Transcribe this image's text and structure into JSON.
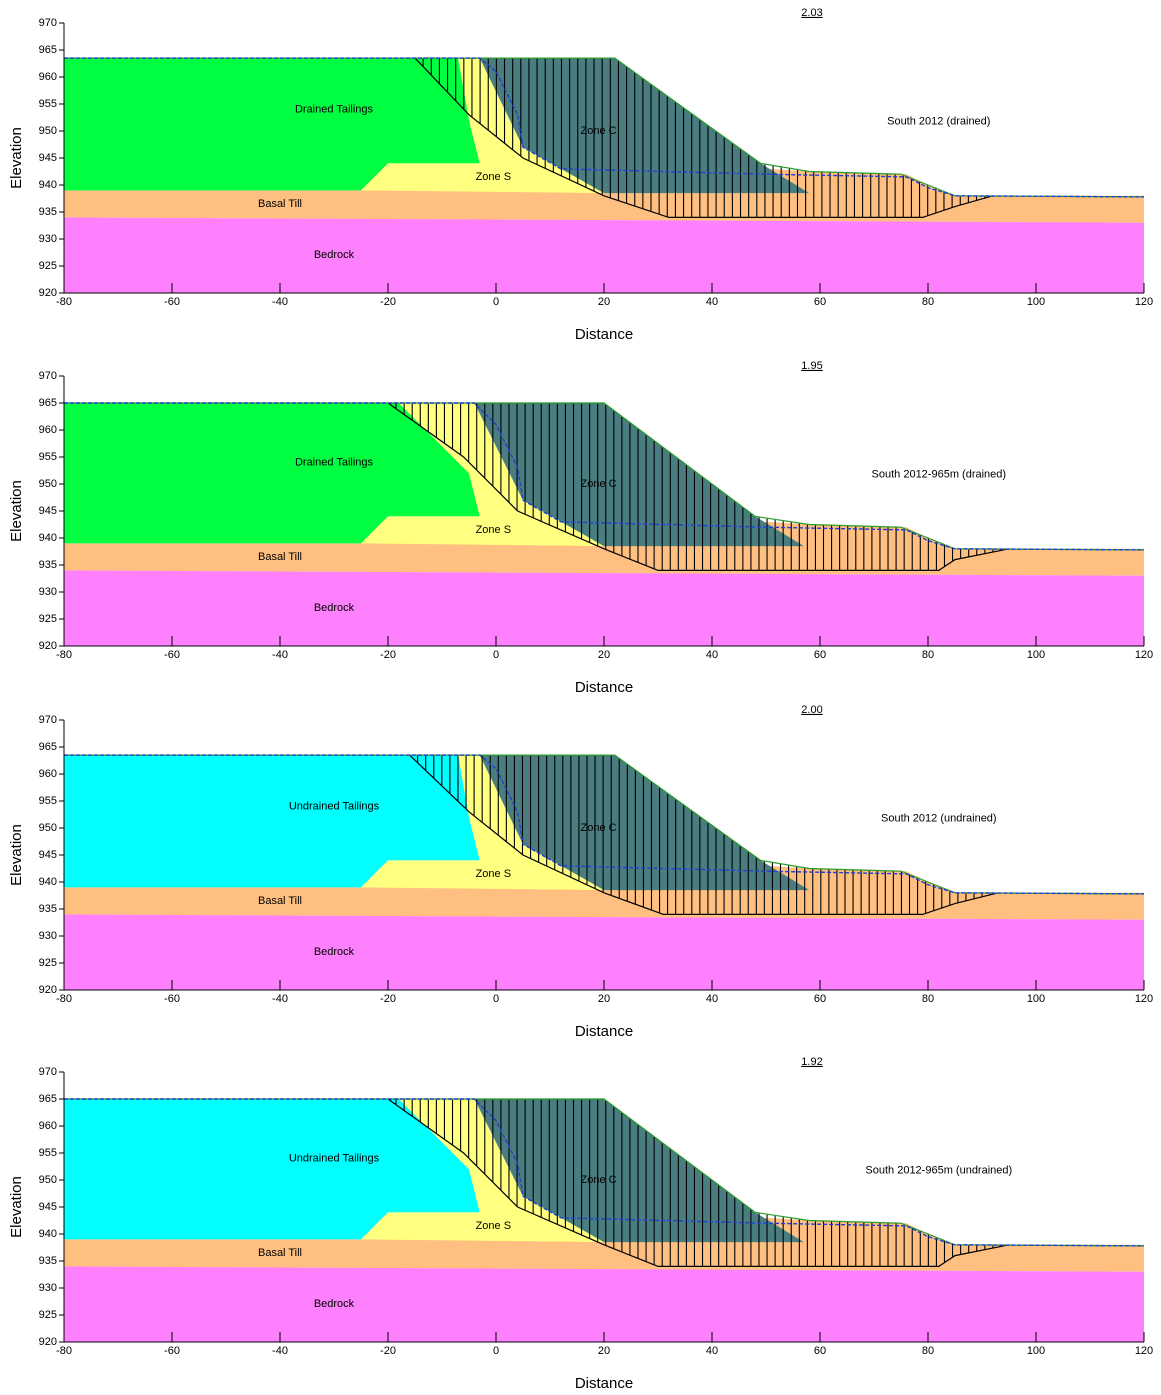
{
  "chart_data": [
    {
      "type": "section",
      "title": "2.03",
      "annotation": "South 2012 (drained)",
      "xlabel": "Distance",
      "ylabel": "Elevation",
      "xlim": [
        -80,
        120
      ],
      "ylim": [
        920,
        970
      ],
      "xticks": [
        -80,
        -60,
        -40,
        -20,
        0,
        20,
        40,
        60,
        80,
        100,
        120
      ],
      "yticks": [
        920,
        925,
        930,
        935,
        940,
        945,
        950,
        955,
        960,
        965,
        970
      ],
      "regions": [
        {
          "label": "Basal Till",
          "color": "#ffbf80",
          "x": [
            -80,
            120,
            120,
            85,
            80,
            76,
            58,
            50,
            32,
            -80
          ],
          "y": [
            934,
            933,
            938,
            938,
            940,
            942,
            942.5,
            943,
            939,
            939
          ]
        },
        {
          "label": "Drained Tailings",
          "color": "#00ff40",
          "x": [
            -80,
            -25,
            -20,
            -3,
            -5,
            -7,
            -80
          ],
          "y": [
            939,
            939,
            944,
            944,
            952,
            963.5,
            963.5
          ]
        },
        {
          "label": "Zone S",
          "color": "#ffff80",
          "x": [
            -25,
            -20,
            -3,
            -5,
            -7,
            -3,
            5,
            20
          ],
          "y": [
            939,
            944,
            944,
            952,
            963.5,
            963.5,
            947,
            938.5
          ]
        },
        {
          "label": "Zone C",
          "color": "#4a7d80",
          "x": [
            -3,
            22,
            49,
            58,
            20,
            5
          ],
          "y": [
            963.5,
            963.5,
            944,
            938.5,
            938.5,
            947
          ]
        },
        {
          "label": "Bedrock",
          "color": "#ff80ff",
          "x": [
            -80,
            120,
            120,
            -80
          ],
          "y": [
            920,
            920,
            933,
            934
          ]
        }
      ],
      "ground": {
        "color": "#2a9d2a",
        "x": [
          -80,
          22,
          49,
          58,
          75,
          80,
          85,
          120
        ],
        "y": [
          963.5,
          963.5,
          944,
          942.5,
          942,
          940,
          938,
          937.8
        ]
      },
      "phreatic": {
        "color": "#1f3fd0",
        "x": [
          -80,
          -3,
          0,
          4,
          5,
          12,
          50,
          76,
          80,
          85,
          120
        ],
        "y": [
          963.5,
          963.5,
          961,
          953,
          947,
          943,
          942,
          941.5,
          939.5,
          938,
          937.8
        ]
      },
      "slip_surface": {
        "color": "#000000",
        "x": [
          -15,
          -5,
          5,
          20,
          32,
          79,
          85,
          92
        ],
        "y": [
          963.5,
          953,
          945,
          938,
          934,
          934,
          936,
          938
        ]
      }
    },
    {
      "type": "section",
      "title": "1.95",
      "annotation": "South 2012-965m (drained)",
      "xlabel": "Distance",
      "ylabel": "Elevation",
      "xlim": [
        -80,
        120
      ],
      "ylim": [
        920,
        970
      ],
      "xticks": [
        -80,
        -60,
        -40,
        -20,
        0,
        20,
        40,
        60,
        80,
        100,
        120
      ],
      "yticks": [
        920,
        925,
        930,
        935,
        940,
        945,
        950,
        955,
        960,
        965,
        970
      ],
      "regions": [
        {
          "label": "Basal Till",
          "color": "#ffbf80",
          "x": [
            -80,
            120,
            120,
            85,
            80,
            76,
            58,
            50,
            32,
            -80
          ],
          "y": [
            934,
            933,
            938,
            938,
            940,
            942,
            942.5,
            943,
            939,
            939
          ]
        },
        {
          "label": "Drained Tailings",
          "color": "#00ff40",
          "x": [
            -80,
            -25,
            -20,
            -3,
            -5,
            -18,
            -80
          ],
          "y": [
            939,
            939,
            944,
            944,
            952,
            965,
            965
          ]
        },
        {
          "label": "Zone S",
          "color": "#ffff80",
          "x": [
            -25,
            -20,
            -3,
            -5,
            -18,
            -4,
            5,
            20
          ],
          "y": [
            939,
            944,
            944,
            952,
            965,
            965,
            947,
            938.5
          ]
        },
        {
          "label": "Zone C",
          "color": "#4a7d80",
          "x": [
            -4,
            20,
            48,
            57,
            20,
            5
          ],
          "y": [
            965,
            965,
            944,
            938.5,
            938.5,
            947
          ]
        },
        {
          "label": "Bedrock",
          "color": "#ff80ff",
          "x": [
            -80,
            120,
            120,
            -80
          ],
          "y": [
            920,
            920,
            933,
            934
          ]
        }
      ],
      "ground": {
        "color": "#2a9d2a",
        "x": [
          -80,
          20,
          48,
          58,
          75,
          80,
          85,
          120
        ],
        "y": [
          965,
          965,
          944,
          942.5,
          942,
          940,
          938,
          937.8
        ]
      },
      "phreatic": {
        "color": "#1f3fd0",
        "x": [
          -80,
          -4,
          0,
          4,
          5,
          12,
          50,
          76,
          80,
          85,
          120
        ],
        "y": [
          965,
          965,
          961,
          953,
          947,
          943,
          942,
          941.5,
          939.5,
          938,
          937.8
        ]
      },
      "slip_surface": {
        "color": "#000000",
        "x": [
          -20,
          -6,
          4,
          20,
          30,
          82,
          85,
          95
        ],
        "y": [
          965,
          955,
          945,
          938,
          934,
          934,
          936,
          938
        ]
      }
    },
    {
      "type": "section",
      "title": "2.00",
      "annotation": "South 2012 (undrained)",
      "xlabel": "Distance",
      "ylabel": "Elevation",
      "xlim": [
        -80,
        120
      ],
      "ylim": [
        920,
        970
      ],
      "xticks": [
        -80,
        -60,
        -40,
        -20,
        0,
        20,
        40,
        60,
        80,
        100,
        120
      ],
      "yticks": [
        920,
        925,
        930,
        935,
        940,
        945,
        950,
        955,
        960,
        965,
        970
      ],
      "regions": [
        {
          "label": "Basal Till",
          "color": "#ffbf80",
          "x": [
            -80,
            120,
            120,
            85,
            80,
            76,
            58,
            50,
            32,
            -80
          ],
          "y": [
            934,
            933,
            938,
            938,
            940,
            942,
            942.5,
            943,
            939,
            939
          ]
        },
        {
          "label": "Undrained Tailings",
          "color": "#00ffff",
          "x": [
            -80,
            -25,
            -20,
            -3,
            -5,
            -7,
            -80
          ],
          "y": [
            939,
            939,
            944,
            944,
            952,
            963.5,
            963.5
          ]
        },
        {
          "label": "Zone S",
          "color": "#ffff80",
          "x": [
            -25,
            -20,
            -3,
            -5,
            -7,
            -3,
            5,
            20
          ],
          "y": [
            939,
            944,
            944,
            952,
            963.5,
            963.5,
            947,
            938.5
          ]
        },
        {
          "label": "Zone C",
          "color": "#4a7d80",
          "x": [
            -3,
            22,
            49,
            58,
            20,
            5
          ],
          "y": [
            963.5,
            963.5,
            944,
            938.5,
            938.5,
            947
          ]
        },
        {
          "label": "Bedrock",
          "color": "#ff80ff",
          "x": [
            -80,
            120,
            120,
            -80
          ],
          "y": [
            920,
            920,
            933,
            934
          ]
        }
      ],
      "ground": {
        "color": "#2a9d2a",
        "x": [
          -80,
          22,
          49,
          58,
          75,
          80,
          85,
          120
        ],
        "y": [
          963.5,
          963.5,
          944,
          942.5,
          942,
          940,
          938,
          937.8
        ]
      },
      "phreatic": {
        "color": "#1f3fd0",
        "x": [
          -80,
          -3,
          0,
          4,
          5,
          12,
          50,
          76,
          80,
          85,
          120
        ],
        "y": [
          963.5,
          963.5,
          961,
          953,
          947,
          943,
          942,
          941.5,
          939.5,
          938,
          937.8
        ]
      },
      "slip_surface": {
        "color": "#000000",
        "x": [
          -16,
          -5,
          5,
          20,
          31,
          79,
          85,
          93
        ],
        "y": [
          963.5,
          953,
          945,
          938,
          934,
          934,
          936,
          938
        ]
      }
    },
    {
      "type": "section",
      "title": "1.92",
      "annotation": "South 2012-965m (undrained)",
      "xlabel": "Distance",
      "ylabel": "Elevation",
      "xlim": [
        -80,
        120
      ],
      "ylim": [
        920,
        970
      ],
      "xticks": [
        -80,
        -60,
        -40,
        -20,
        0,
        20,
        40,
        60,
        80,
        100,
        120
      ],
      "yticks": [
        920,
        925,
        930,
        935,
        940,
        945,
        950,
        955,
        960,
        965,
        970
      ],
      "regions": [
        {
          "label": "Basal Till",
          "color": "#ffbf80",
          "x": [
            -80,
            120,
            120,
            85,
            80,
            76,
            58,
            50,
            32,
            -80
          ],
          "y": [
            934,
            933,
            938,
            938,
            940,
            942,
            942.5,
            943,
            939,
            939
          ]
        },
        {
          "label": "Undrained Tailings",
          "color": "#00ffff",
          "x": [
            -80,
            -25,
            -20,
            -3,
            -5,
            -18,
            -80
          ],
          "y": [
            939,
            939,
            944,
            944,
            952,
            965,
            965
          ]
        },
        {
          "label": "Zone S",
          "color": "#ffff80",
          "x": [
            -25,
            -20,
            -3,
            -5,
            -18,
            -4,
            5,
            20
          ],
          "y": [
            939,
            944,
            944,
            952,
            965,
            965,
            947,
            938.5
          ]
        },
        {
          "label": "Zone C",
          "color": "#4a7d80",
          "x": [
            -4,
            20,
            48,
            57,
            20,
            5
          ],
          "y": [
            965,
            965,
            944,
            938.5,
            938.5,
            947
          ]
        },
        {
          "label": "Bedrock",
          "color": "#ff80ff",
          "x": [
            -80,
            120,
            120,
            -80
          ],
          "y": [
            920,
            920,
            933,
            934
          ]
        }
      ],
      "ground": {
        "color": "#2a9d2a",
        "x": [
          -80,
          20,
          48,
          58,
          75,
          80,
          85,
          120
        ],
        "y": [
          965,
          965,
          944,
          942.5,
          942,
          940,
          938,
          937.8
        ]
      },
      "phreatic": {
        "color": "#1f3fd0",
        "x": [
          -80,
          -4,
          0,
          4,
          5,
          12,
          50,
          76,
          80,
          85,
          120
        ],
        "y": [
          965,
          965,
          961,
          953,
          947,
          943,
          942,
          941.5,
          939.5,
          938,
          937.8
        ]
      },
      "slip_surface": {
        "color": "#000000",
        "x": [
          -20,
          -6,
          4,
          20,
          30,
          82,
          85,
          95
        ],
        "y": [
          965,
          955,
          945,
          938,
          934,
          934,
          936,
          938
        ]
      }
    }
  ]
}
